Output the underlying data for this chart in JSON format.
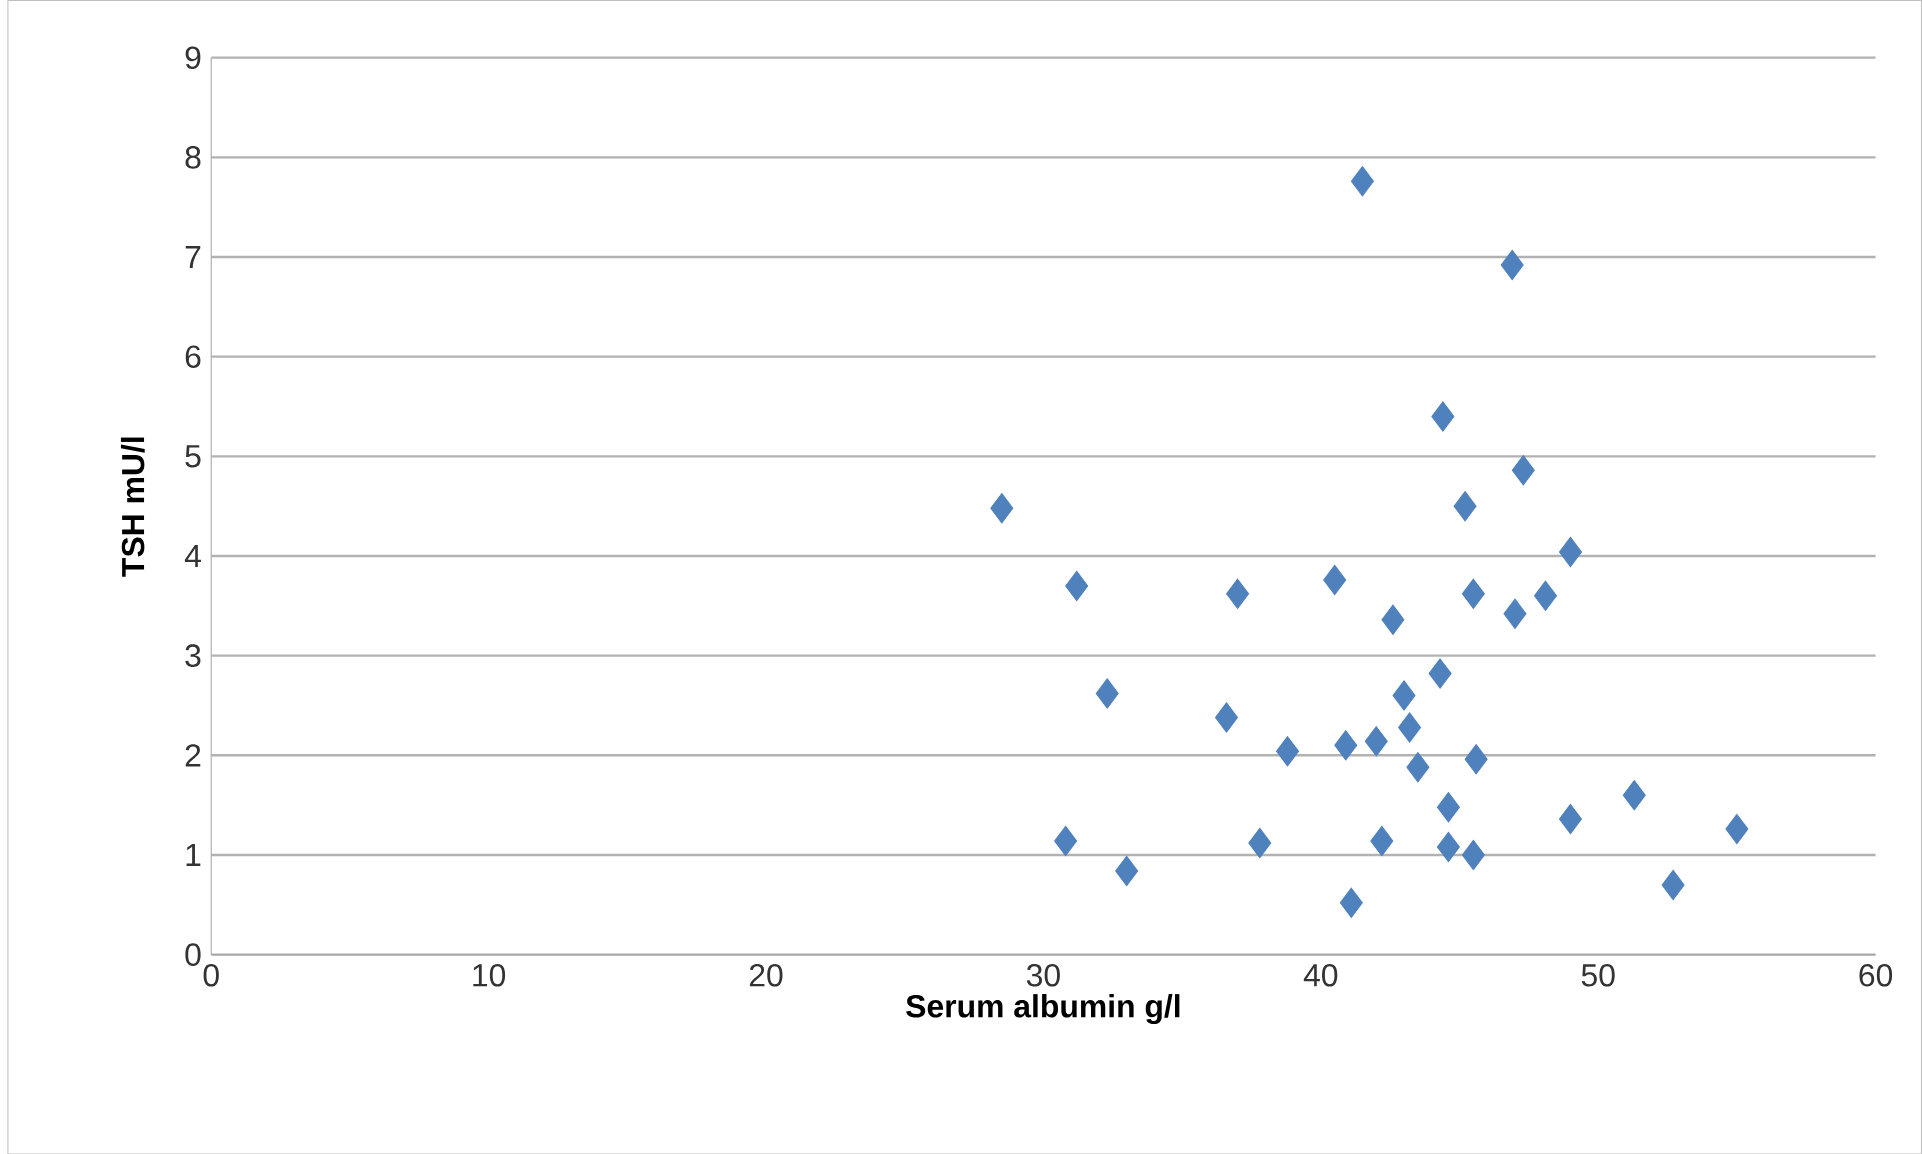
{
  "chart_data": {
    "type": "scatter",
    "xlabel": "Serum albumin g/l",
    "ylabel": "TSH mU/l",
    "x": [
      41.5,
      46.9,
      44.4,
      47.3,
      28.5,
      45.2,
      49.0,
      31.2,
      37.0,
      40.5,
      45.5,
      48.1,
      47.0,
      42.6,
      44.3,
      32.3,
      43.0,
      36.6,
      43.2,
      38.8,
      40.9,
      42.0,
      43.5,
      45.6,
      44.6,
      49.0,
      30.8,
      37.8,
      42.2,
      44.6,
      45.5,
      33.0,
      41.1,
      51.3,
      52.7,
      55.0
    ],
    "values": [
      7.76,
      6.92,
      5.4,
      4.86,
      4.48,
      4.5,
      4.04,
      3.7,
      3.62,
      3.76,
      3.62,
      3.6,
      3.42,
      3.36,
      2.82,
      2.62,
      2.6,
      2.38,
      2.28,
      2.04,
      2.1,
      2.14,
      1.88,
      1.96,
      1.48,
      1.36,
      1.14,
      1.12,
      1.14,
      1.08,
      1.0,
      0.84,
      0.52,
      1.6,
      0.7,
      1.26
    ],
    "color": "#4f81bd",
    "marker": "diamond",
    "grid": "y",
    "xlim": [
      0,
      60
    ],
    "xticks": [
      0,
      10,
      20,
      30,
      40,
      50,
      60
    ],
    "ylim": [
      0,
      9
    ],
    "yticks": [
      0,
      1,
      2,
      3,
      4,
      5,
      6,
      7,
      8,
      9
    ]
  }
}
